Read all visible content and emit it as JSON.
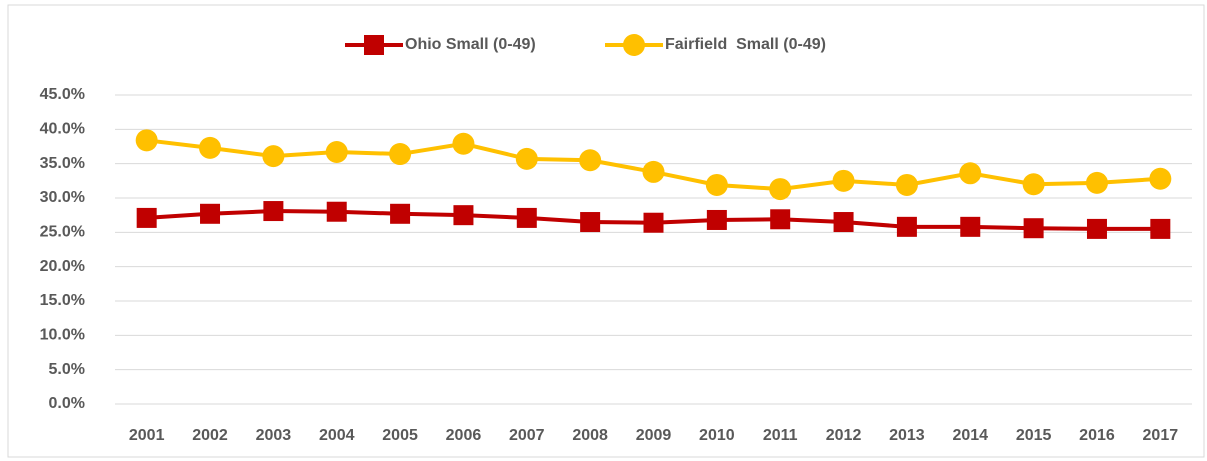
{
  "chart_data": {
    "type": "line",
    "categories": [
      "2001",
      "2002",
      "2003",
      "2004",
      "2005",
      "2006",
      "2007",
      "2008",
      "2009",
      "2010",
      "2011",
      "2012",
      "2013",
      "2014",
      "2015",
      "2016",
      "2017"
    ],
    "series": [
      {
        "name": "Ohio Small (0-49)",
        "color": "#c00000",
        "marker": "square",
        "values": [
          27.1,
          27.7,
          28.1,
          28.0,
          27.7,
          27.5,
          27.1,
          26.5,
          26.4,
          26.8,
          26.9,
          26.5,
          25.8,
          25.8,
          25.6,
          25.5,
          25.5
        ]
      },
      {
        "name": "Fairfield  Small (0-49)",
        "color": "#ffc000",
        "marker": "circle",
        "values": [
          38.4,
          37.3,
          36.1,
          36.7,
          36.4,
          37.9,
          35.7,
          35.5,
          33.8,
          31.9,
          31.3,
          32.5,
          31.9,
          33.6,
          32.0,
          32.2,
          32.8
        ]
      }
    ],
    "ylim": [
      0,
      45
    ],
    "yticks": [
      {
        "value": 0,
        "label": "0.0%"
      },
      {
        "value": 5,
        "label": "5.0%"
      },
      {
        "value": 10,
        "label": "10.0%"
      },
      {
        "value": 15,
        "label": "15.0%"
      },
      {
        "value": 20,
        "label": "20.0%"
      },
      {
        "value": 25,
        "label": "25.0%"
      },
      {
        "value": 30,
        "label": "30.0%"
      },
      {
        "value": 35,
        "label": "35.0%"
      },
      {
        "value": 40,
        "label": "40.0%"
      },
      {
        "value": 45,
        "label": "45.0%"
      }
    ],
    "grid": true,
    "legend": "top"
  }
}
